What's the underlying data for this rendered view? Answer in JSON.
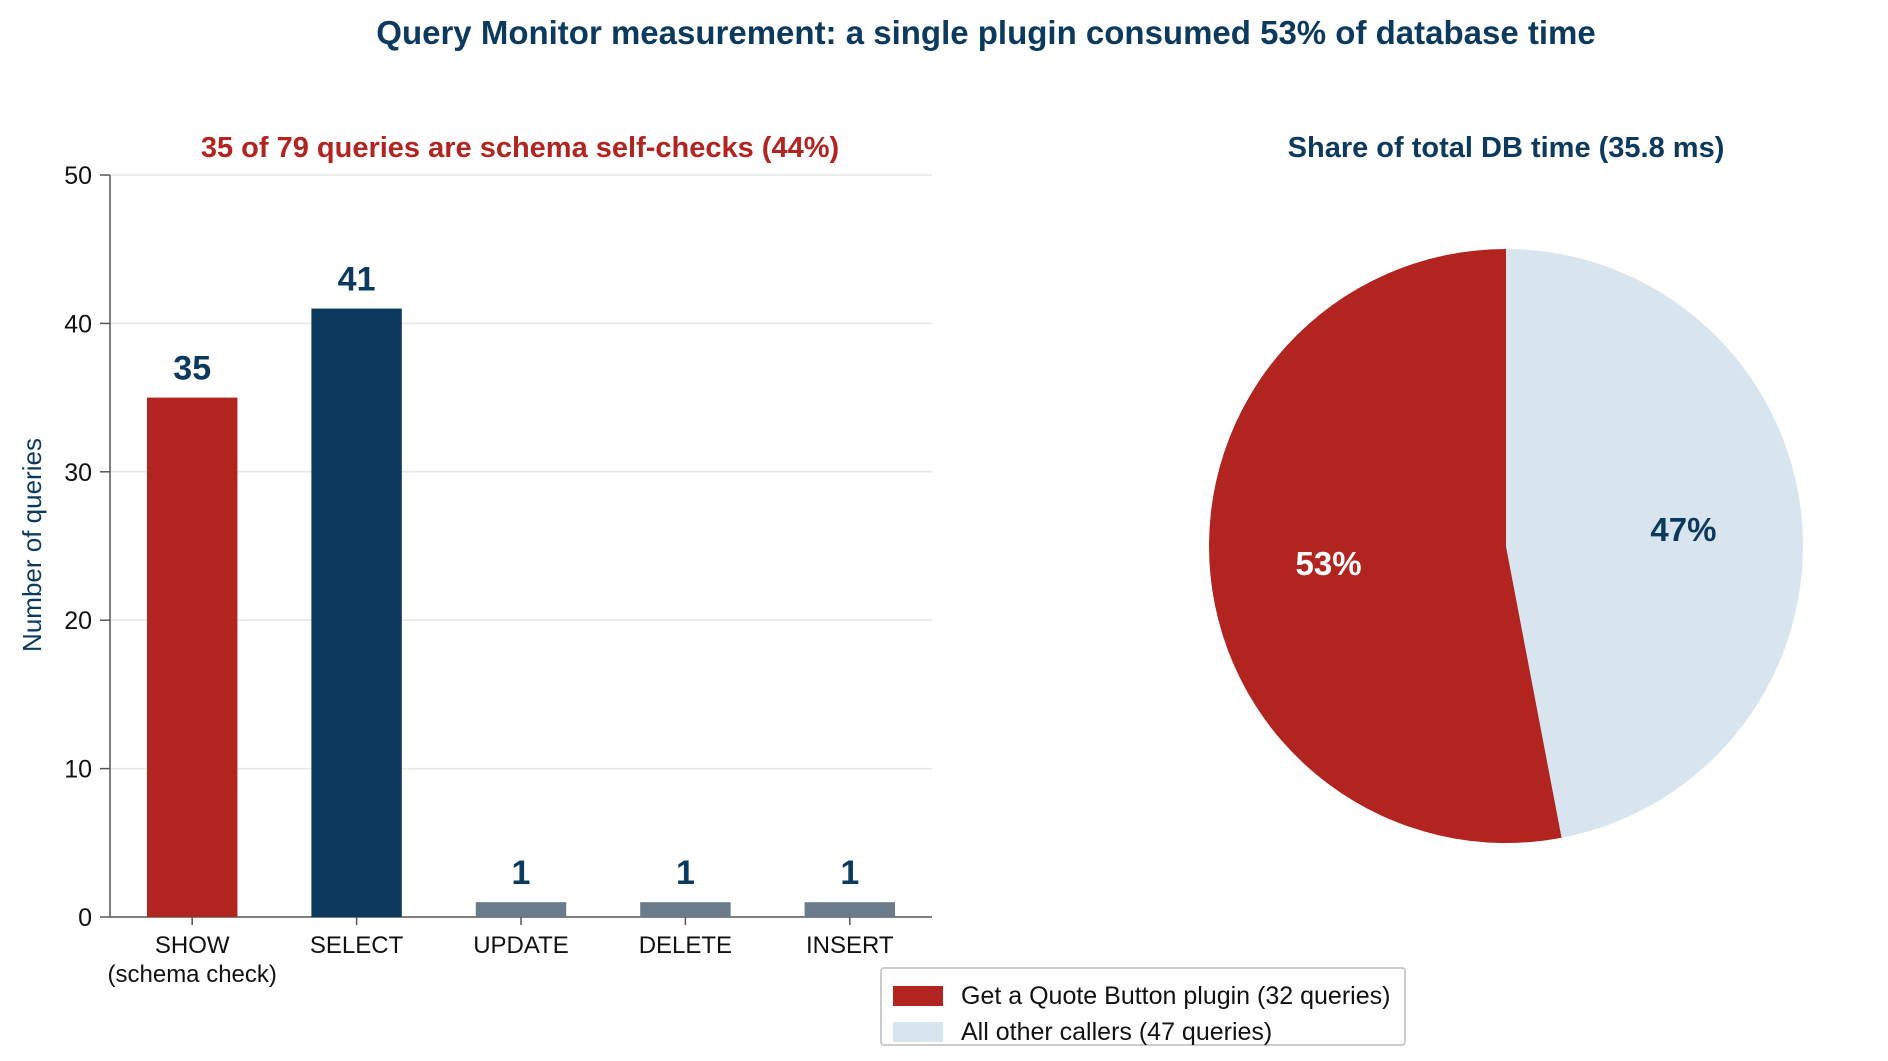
{
  "figure": {
    "title": "Query Monitor measurement: a single plugin consumed 53% of database time"
  },
  "chart_data": [
    {
      "type": "bar",
      "title": "35 of 79 queries are schema self-checks (44%)",
      "xlabel": "",
      "ylabel": "Number of queries",
      "ylim": [
        0,
        50
      ],
      "yticks": [
        0,
        10,
        20,
        30,
        40,
        50
      ],
      "grid": true,
      "categories": [
        [
          "SHOW",
          "(schema check)"
        ],
        [
          "SELECT"
        ],
        [
          "UPDATE"
        ],
        [
          "DELETE"
        ],
        [
          "INSERT"
        ]
      ],
      "values": [
        35,
        41,
        1,
        1,
        1
      ],
      "colors": [
        "#b22420",
        "#0b3a5e",
        "#6b7b8c",
        "#6b7b8c",
        "#6b7b8c"
      ],
      "title_color": "#b22420",
      "label_color": "#0b3a5e"
    },
    {
      "type": "pie",
      "title": "Share of total DB time (35.8 ms)",
      "title_color": "#0b3a5e",
      "slices": [
        {
          "label": "Get a Quote Button plugin (32 queries)",
          "value": 53,
          "display": "53%",
          "color": "#b22420",
          "text_color": "#ffffff"
        },
        {
          "label": "All other callers (47 queries)",
          "value": 47,
          "display": "47%",
          "color": "#d8e5ef",
          "text_color": "#0b3a5e"
        }
      ],
      "legend_position": "bottom-center"
    }
  ]
}
